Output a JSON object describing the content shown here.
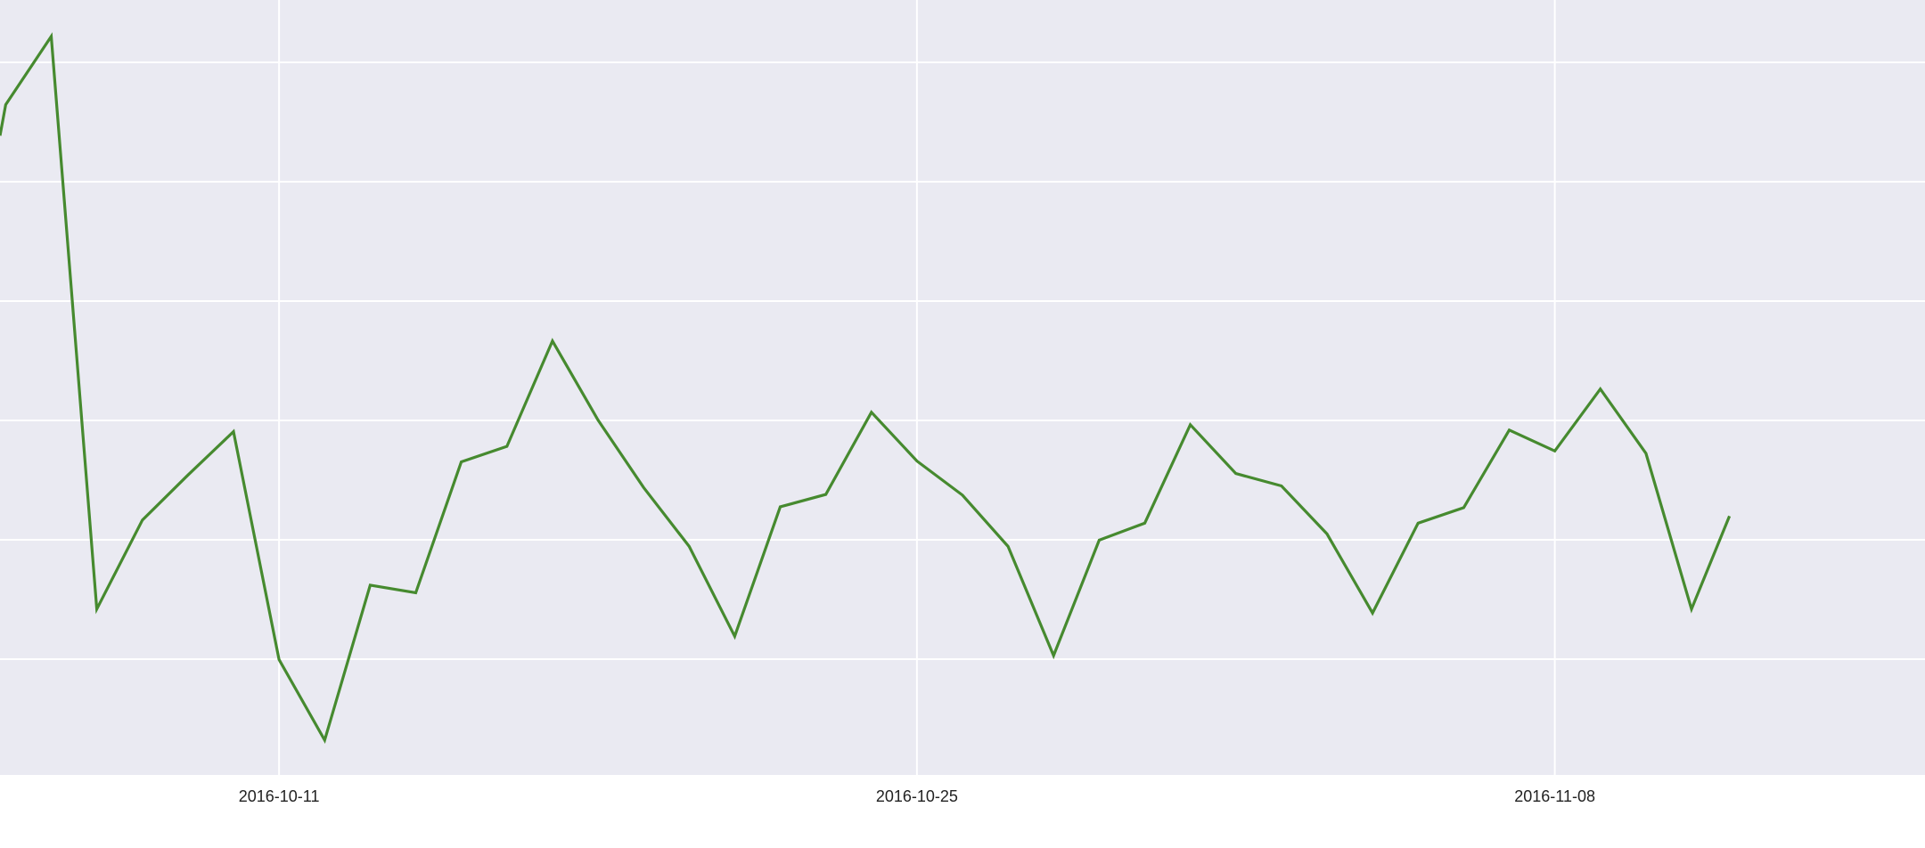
{
  "chart_data": {
    "type": "line",
    "title": "",
    "xlabel": "",
    "ylabel": "",
    "grid": true,
    "legend": "none",
    "colors": {
      "background": "#eaeaf2",
      "grid": "#ffffff",
      "line": "#468a2f",
      "tick_text": "#222222"
    },
    "x_ticks": [
      "2016-10-11",
      "2016-10-25",
      "2016-11-08"
    ],
    "y_tick_count": 6,
    "xlim": [
      "2016-10-04 21:00",
      "2016-11-16 03:00"
    ],
    "ylim": [
      0,
      1
    ],
    "y_scale_note": "y axis has no printed tick labels; values are relative (0 = bottom of plot, 1 = top)",
    "series": [
      {
        "values": [
          {
            "x": "2016-10-04 21:00",
            "y": 0.825
          },
          {
            "x": "2016-10-05",
            "y": 0.865
          },
          {
            "x": "2016-10-06",
            "y": 0.953
          },
          {
            "x": "2016-10-07",
            "y": 0.214
          },
          {
            "x": "2016-10-08",
            "y": 0.329
          },
          {
            "x": "2016-10-09",
            "y": 0.387
          },
          {
            "x": "2016-10-10",
            "y": 0.443
          },
          {
            "x": "2016-10-11",
            "y": 0.149
          },
          {
            "x": "2016-10-12",
            "y": 0.045
          },
          {
            "x": "2016-10-13",
            "y": 0.245
          },
          {
            "x": "2016-10-14",
            "y": 0.235
          },
          {
            "x": "2016-10-15",
            "y": 0.404
          },
          {
            "x": "2016-10-16",
            "y": 0.424
          },
          {
            "x": "2016-10-17",
            "y": 0.56
          },
          {
            "x": "2016-10-18",
            "y": 0.458
          },
          {
            "x": "2016-10-19",
            "y": 0.371
          },
          {
            "x": "2016-10-20",
            "y": 0.295
          },
          {
            "x": "2016-10-21",
            "y": 0.179
          },
          {
            "x": "2016-10-22",
            "y": 0.346
          },
          {
            "x": "2016-10-23",
            "y": 0.362
          },
          {
            "x": "2016-10-24",
            "y": 0.468
          },
          {
            "x": "2016-10-25",
            "y": 0.405
          },
          {
            "x": "2016-10-26",
            "y": 0.361
          },
          {
            "x": "2016-10-27",
            "y": 0.295
          },
          {
            "x": "2016-10-28",
            "y": 0.154
          },
          {
            "x": "2016-10-29",
            "y": 0.303
          },
          {
            "x": "2016-10-30",
            "y": 0.325
          },
          {
            "x": "2016-10-31",
            "y": 0.452
          },
          {
            "x": "2016-11-01",
            "y": 0.389
          },
          {
            "x": "2016-11-02",
            "y": 0.373
          },
          {
            "x": "2016-11-03",
            "y": 0.311
          },
          {
            "x": "2016-11-04",
            "y": 0.209
          },
          {
            "x": "2016-11-05",
            "y": 0.325
          },
          {
            "x": "2016-11-06",
            "y": 0.345
          },
          {
            "x": "2016-11-07",
            "y": 0.445
          },
          {
            "x": "2016-11-08",
            "y": 0.418
          },
          {
            "x": "2016-11-09",
            "y": 0.498
          },
          {
            "x": "2016-11-10",
            "y": 0.415
          },
          {
            "x": "2016-11-11",
            "y": 0.214
          },
          {
            "x": "2016-11-11 20:00",
            "y": 0.334
          }
        ]
      }
    ]
  }
}
